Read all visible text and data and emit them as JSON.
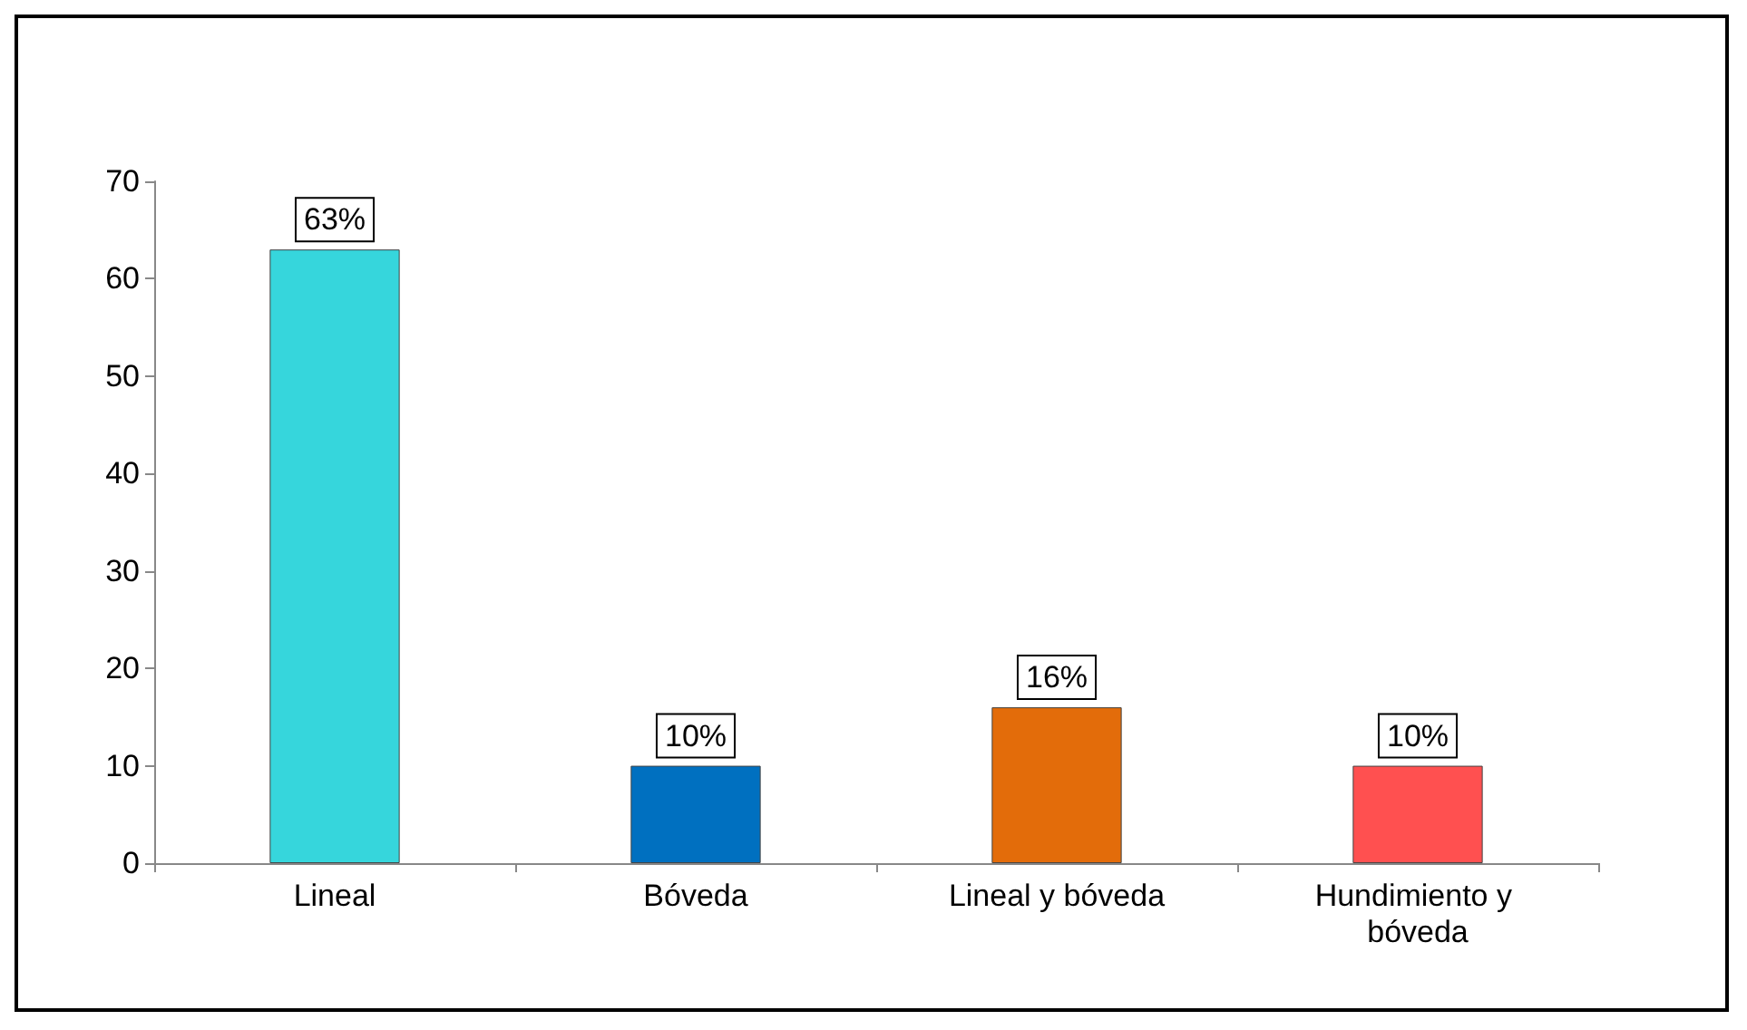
{
  "chart_data": {
    "type": "bar",
    "categories": [
      "Lineal",
      "Bóveda",
      "Lineal y bóveda",
      "Hundimiento y bóveda"
    ],
    "values": [
      63,
      10,
      16,
      10
    ],
    "colors": [
      "#36d6dc",
      "#0070c0",
      "#e36c0a",
      "#ff5050"
    ],
    "value_labels": [
      "63%",
      "10%",
      "16%",
      "10%"
    ],
    "ylim": [
      0,
      70
    ],
    "yticks": [
      0,
      10,
      20,
      30,
      40,
      50,
      60,
      70
    ]
  }
}
